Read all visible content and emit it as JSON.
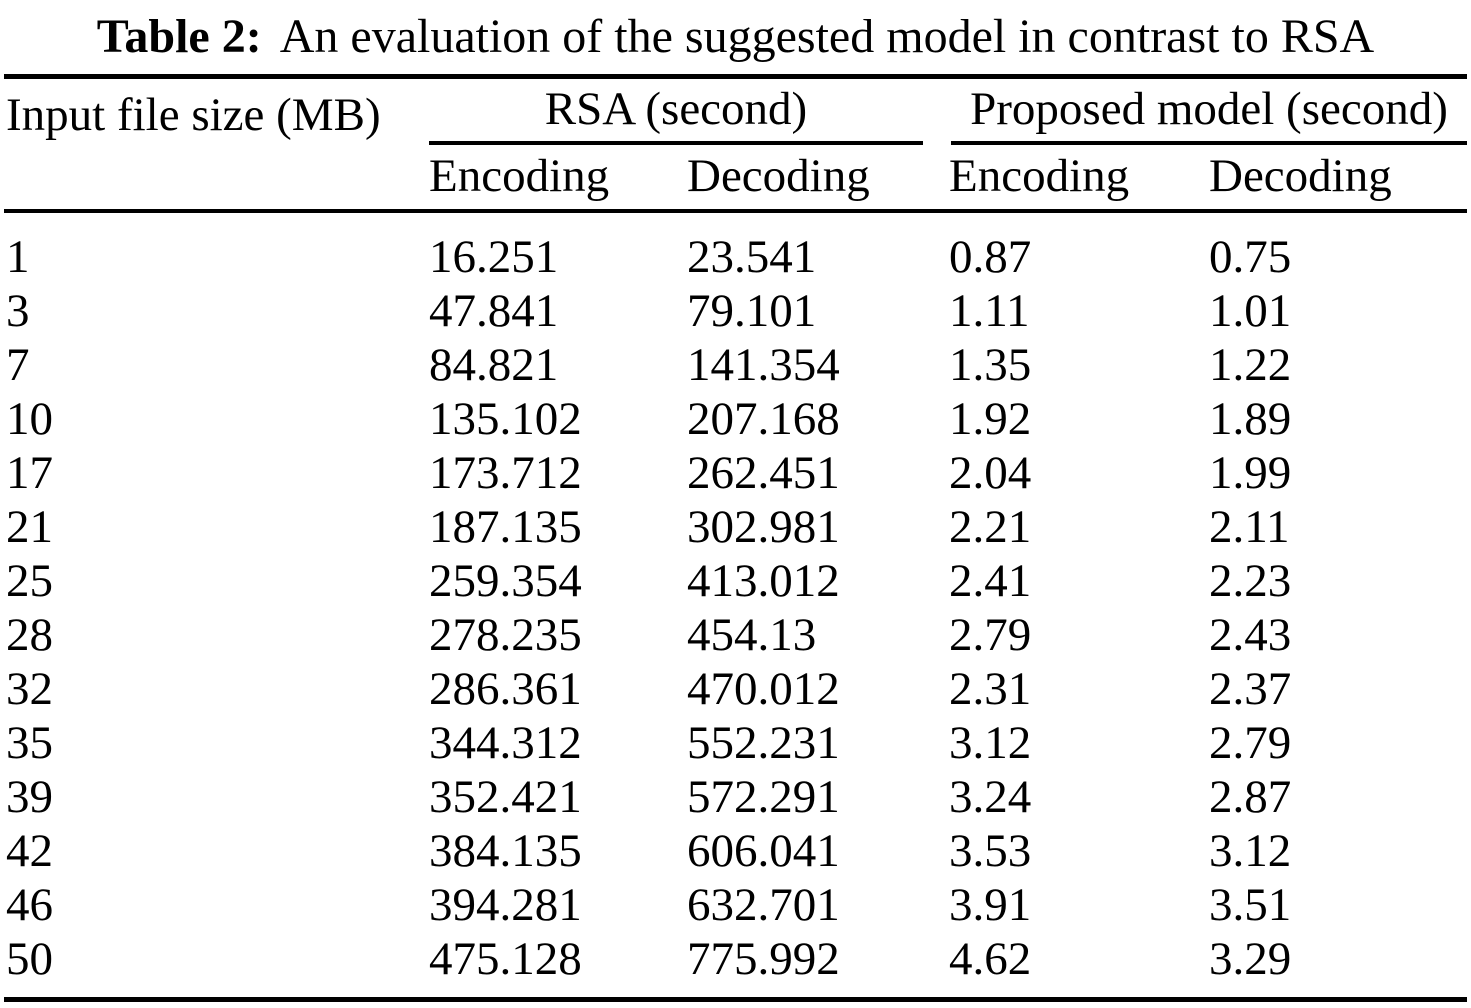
{
  "title": {
    "label": "Table 2:",
    "text": "An evaluation of the suggested model in contrast to RSA"
  },
  "table": {
    "col_file_size": "Input file size (MB)",
    "group_rsa": "RSA (second)",
    "group_proposed": "Proposed model (second)",
    "sub_rsa_encoding": "Encoding",
    "sub_rsa_decoding": "Decoding",
    "sub_proposed_encoding": "Encoding",
    "sub_proposed_decoding": "Decoding",
    "rows": [
      [
        "1",
        "16.251",
        "23.541",
        "0.87",
        "0.75"
      ],
      [
        "3",
        "47.841",
        "79.101",
        "1.11",
        "1.01"
      ],
      [
        "7",
        "84.821",
        "141.354",
        "1.35",
        "1.22"
      ],
      [
        "10",
        "135.102",
        "207.168",
        "1.92",
        "1.89"
      ],
      [
        "17",
        "173.712",
        "262.451",
        "2.04",
        "1.99"
      ],
      [
        "21",
        "187.135",
        "302.981",
        "2.21",
        "2.11"
      ],
      [
        "25",
        "259.354",
        "413.012",
        "2.41",
        "2.23"
      ],
      [
        "28",
        "278.235",
        "454.13",
        "2.79",
        "2.43"
      ],
      [
        "32",
        "286.361",
        "470.012",
        "2.31",
        "2.37"
      ],
      [
        "35",
        "344.312",
        "552.231",
        "3.12",
        "2.79"
      ],
      [
        "39",
        "352.421",
        "572.291",
        "3.24",
        "2.87"
      ],
      [
        "42",
        "384.135",
        "606.041",
        "3.53",
        "3.12"
      ],
      [
        "46",
        "394.281",
        "632.701",
        "3.91",
        "3.51"
      ],
      [
        "50",
        "475.128",
        "775.992",
        "4.62",
        "3.29"
      ]
    ]
  },
  "colors": {
    "text": "#000000",
    "background": "#ffffff",
    "rule": "#000000"
  }
}
